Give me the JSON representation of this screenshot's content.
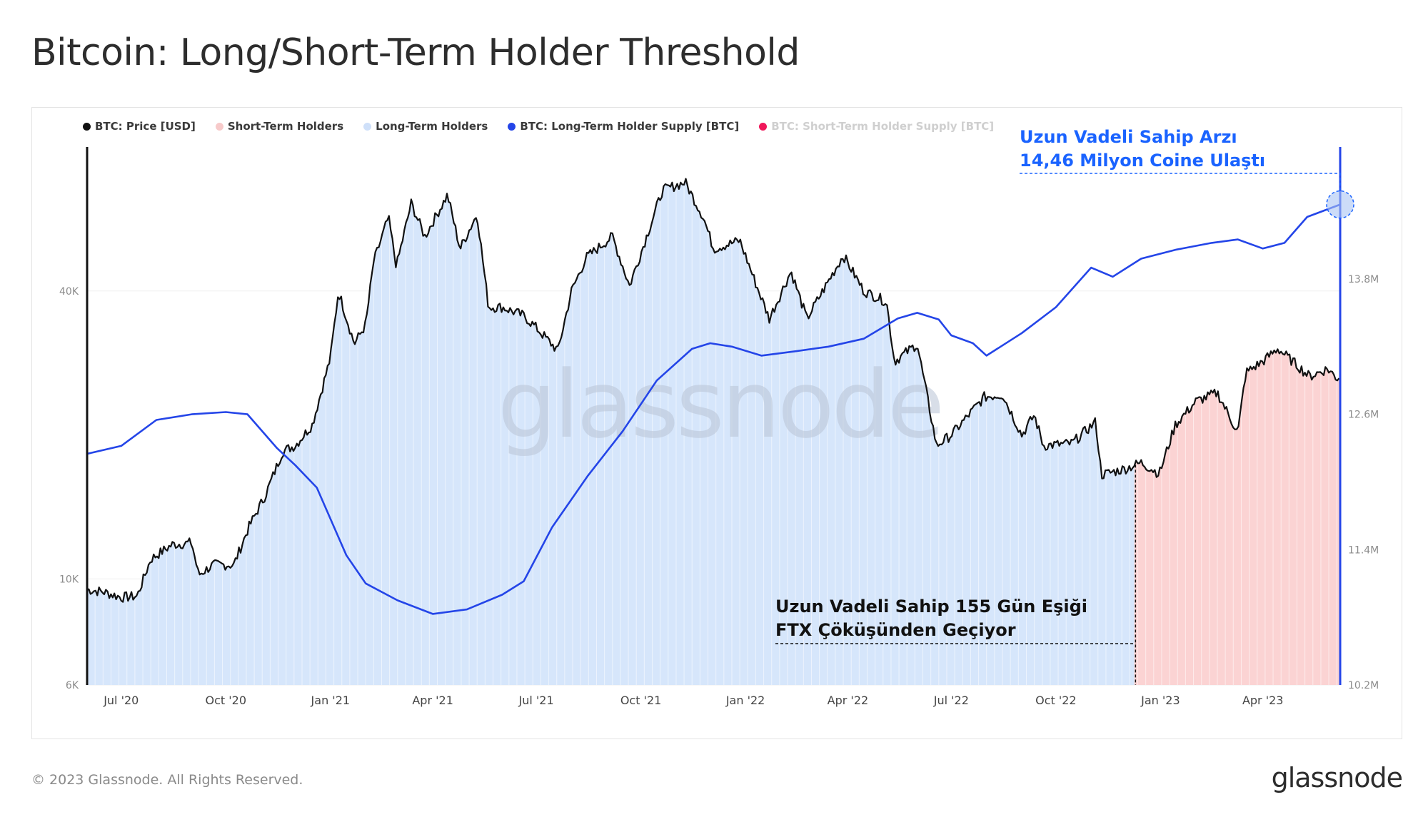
{
  "title": "Bitcoin: Long/Short-Term Holder Threshold",
  "legend": [
    {
      "label": "BTC: Price [USD]",
      "color": "#111111",
      "muted": false
    },
    {
      "label": "Short-Term Holders",
      "color": "#f7caca",
      "muted": false
    },
    {
      "label": "Long-Term Holders",
      "color": "#cfe0f9",
      "muted": false
    },
    {
      "label": "BTC: Long-Term Holder Supply [BTC]",
      "color": "#2445e8",
      "muted": false
    },
    {
      "label": "BTC: Short-Term Holder Supply [BTC]",
      "color": "#f0175a",
      "muted": true
    }
  ],
  "annotations": {
    "lth_supply_line1": "Uzun Vadeli Sahip Arzı",
    "lth_supply_line2": "14,46 Milyon Coine Ulaştı",
    "threshold_line1": "Uzun Vadeli Sahip 155 Gün Eşiği",
    "threshold_line2": "FTX Çöküşünden Geçiyor"
  },
  "watermark": "glassnode",
  "footer": {
    "copyright": "© 2023 Glassnode. All Rights Reserved.",
    "brand": "glassnode"
  },
  "colors": {
    "price": "#111111",
    "lth_supply": "#2445e8",
    "lth_band": "#d6e6fb",
    "sth_band": "#fbd3d3",
    "annotation_blue": "#1a63ff"
  },
  "chart_data": {
    "type": "line",
    "x_ticks": [
      "Jul '20",
      "Oct '20",
      "Jan '21",
      "Apr '21",
      "Jul '21",
      "Oct '21",
      "Jan '22",
      "Apr '22",
      "Jul '22",
      "Oct '22",
      "Jan '23",
      "Apr '23"
    ],
    "x_start": "2020-06-01",
    "x_end": "2023-06-08",
    "y_left": {
      "scale": "log",
      "ticks": [
        6000,
        10000,
        40000
      ],
      "tick_labels": [
        "6K",
        "10K",
        "40K"
      ],
      "range": [
        6000,
        80000
      ]
    },
    "y_right": {
      "scale": "linear",
      "ticks": [
        10.2,
        11.4,
        12.6,
        13.8
      ],
      "tick_labels": [
        "10.2M",
        "11.4M",
        "12.6M",
        "13.8M"
      ],
      "range": [
        10.2,
        14.97
      ],
      "unit": "M BTC"
    },
    "regime_split_date": "2022-12-10",
    "series": [
      {
        "name": "BTC: Price [USD]",
        "axis": "left",
        "points": [
          [
            "2020-06-01",
            9500
          ],
          [
            "2020-06-15",
            9400
          ],
          [
            "2020-07-01",
            9150
          ],
          [
            "2020-07-15",
            9200
          ],
          [
            "2020-07-27",
            11000
          ],
          [
            "2020-08-15",
            11800
          ],
          [
            "2020-09-01",
            11900
          ],
          [
            "2020-09-07",
            10200
          ],
          [
            "2020-09-20",
            10700
          ],
          [
            "2020-10-08",
            10700
          ],
          [
            "2020-10-21",
            12800
          ],
          [
            "2020-11-05",
            15000
          ],
          [
            "2020-11-20",
            18500
          ],
          [
            "2020-12-01",
            19000
          ],
          [
            "2020-12-16",
            21000
          ],
          [
            "2021-01-01",
            29000
          ],
          [
            "2021-01-08",
            40000
          ],
          [
            "2021-01-22",
            31000
          ],
          [
            "2021-02-01",
            34000
          ],
          [
            "2021-02-08",
            46000
          ],
          [
            "2021-02-21",
            57000
          ],
          [
            "2021-02-28",
            45000
          ],
          [
            "2021-03-13",
            61000
          ],
          [
            "2021-03-25",
            52000
          ],
          [
            "2021-04-14",
            63500
          ],
          [
            "2021-04-25",
            49000
          ],
          [
            "2021-05-10",
            58000
          ],
          [
            "2021-05-20",
            37000
          ],
          [
            "2021-06-01",
            37000
          ],
          [
            "2021-06-20",
            35500
          ],
          [
            "2021-07-01",
            33500
          ],
          [
            "2021-07-20",
            30000
          ],
          [
            "2021-08-01",
            40000
          ],
          [
            "2021-08-14",
            47000
          ],
          [
            "2021-09-06",
            52000
          ],
          [
            "2021-09-21",
            41000
          ],
          [
            "2021-10-01",
            48000
          ],
          [
            "2021-10-20",
            65000
          ],
          [
            "2021-11-09",
            67500
          ],
          [
            "2021-11-25",
            57000
          ],
          [
            "2021-12-04",
            49000
          ],
          [
            "2021-12-27",
            51000
          ],
          [
            "2022-01-10",
            41500
          ],
          [
            "2022-01-22",
            35000
          ],
          [
            "2022-02-10",
            44000
          ],
          [
            "2022-02-24",
            35000
          ],
          [
            "2022-03-28",
            47500
          ],
          [
            "2022-04-15",
            40000
          ],
          [
            "2022-05-05",
            38000
          ],
          [
            "2022-05-12",
            28500
          ],
          [
            "2022-06-01",
            31000
          ],
          [
            "2022-06-18",
            19000
          ],
          [
            "2022-07-01",
            20000
          ],
          [
            "2022-07-30",
            24000
          ],
          [
            "2022-08-15",
            24300
          ],
          [
            "2022-09-01",
            20000
          ],
          [
            "2022-09-12",
            22000
          ],
          [
            "2022-09-20",
            19000
          ],
          [
            "2022-10-15",
            19200
          ],
          [
            "2022-11-05",
            21300
          ],
          [
            "2022-11-10",
            16500
          ],
          [
            "2022-12-01",
            17000
          ],
          [
            "2022-12-15",
            17500
          ],
          [
            "2022-12-31",
            16600
          ],
          [
            "2023-01-14",
            21000
          ],
          [
            "2023-02-01",
            23500
          ],
          [
            "2023-02-20",
            24500
          ],
          [
            "2023-03-10",
            20200
          ],
          [
            "2023-03-17",
            27000
          ],
          [
            "2023-04-01",
            28500
          ],
          [
            "2023-04-14",
            30300
          ],
          [
            "2023-05-01",
            28000
          ],
          [
            "2023-05-12",
            26500
          ],
          [
            "2023-05-28",
            27500
          ],
          [
            "2023-06-05",
            26300
          ],
          [
            "2023-06-08",
            26500
          ]
        ]
      },
      {
        "name": "BTC: Long-Term Holder Supply [BTC]",
        "axis": "right",
        "points": [
          [
            "2020-06-01",
            12.25
          ],
          [
            "2020-07-01",
            12.32
          ],
          [
            "2020-08-01",
            12.55
          ],
          [
            "2020-09-01",
            12.6
          ],
          [
            "2020-10-01",
            12.62
          ],
          [
            "2020-10-20",
            12.6
          ],
          [
            "2020-11-15",
            12.3
          ],
          [
            "2020-12-01",
            12.15
          ],
          [
            "2020-12-20",
            11.95
          ],
          [
            "2021-01-15",
            11.35
          ],
          [
            "2021-02-01",
            11.1
          ],
          [
            "2021-03-01",
            10.95
          ],
          [
            "2021-04-01",
            10.83
          ],
          [
            "2021-05-01",
            10.87
          ],
          [
            "2021-06-01",
            11.0
          ],
          [
            "2021-06-20",
            11.12
          ],
          [
            "2021-07-15",
            11.6
          ],
          [
            "2021-08-15",
            12.05
          ],
          [
            "2021-09-15",
            12.45
          ],
          [
            "2021-10-15",
            12.9
          ],
          [
            "2021-11-15",
            13.18
          ],
          [
            "2021-12-01",
            13.23
          ],
          [
            "2021-12-20",
            13.2
          ],
          [
            "2022-01-15",
            13.12
          ],
          [
            "2022-02-15",
            13.16
          ],
          [
            "2022-03-15",
            13.2
          ],
          [
            "2022-04-15",
            13.27
          ],
          [
            "2022-05-15",
            13.45
          ],
          [
            "2022-06-01",
            13.5
          ],
          [
            "2022-06-20",
            13.44
          ],
          [
            "2022-07-01",
            13.3
          ],
          [
            "2022-07-20",
            13.23
          ],
          [
            "2022-08-01",
            13.12
          ],
          [
            "2022-09-01",
            13.32
          ],
          [
            "2022-10-01",
            13.55
          ],
          [
            "2022-11-01",
            13.9
          ],
          [
            "2022-11-20",
            13.82
          ],
          [
            "2022-12-15",
            13.98
          ],
          [
            "2023-01-15",
            14.06
          ],
          [
            "2023-02-15",
            14.12
          ],
          [
            "2023-03-10",
            14.15
          ],
          [
            "2023-04-01",
            14.07
          ],
          [
            "2023-04-20",
            14.12
          ],
          [
            "2023-05-10",
            14.35
          ],
          [
            "2023-06-08",
            14.46
          ]
        ]
      }
    ]
  }
}
